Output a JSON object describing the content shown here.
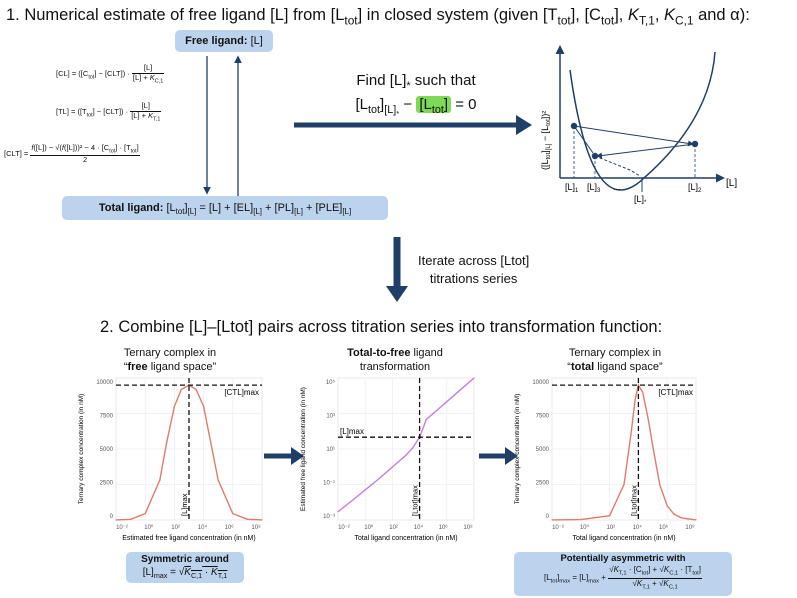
{
  "section1_title": "1. Numerical estimate of free ligand [L] from [Ltot] in closed system (given [Ttot], [Ctot], KT,1, KC,1 and α):",
  "free_ligand_label": "Free ligand:",
  "free_ligand_symbol": "[L]",
  "total_ligand_label": "Total ligand:",
  "find_text": "Find [L]* such that",
  "iterate_text": [
    "Iterate across [Ltot]",
    "titrations series"
  ],
  "section2_title": "2. Combine [L]–[Ltot] pairs across titration series into transformation function:",
  "schematic": {
    "y_axis": "([Ltot][L] − [Ltot])²",
    "x_axis": "[L]",
    "ticks": [
      "[L]1",
      "[L]3",
      "...",
      "[L]2",
      "[L]*"
    ]
  },
  "panels": [
    {
      "title_lines": [
        "Ternary complex in",
        "“free ligand space”"
      ],
      "ylabel": "Ternary complex concentration (in nM)",
      "xlabel": "Estimated free ligand concentration (in nM)",
      "yticks": [
        "10000",
        "7500",
        "5000",
        "2500",
        "0"
      ],
      "xticks": [
        "10⁻²",
        "10⁰",
        "10²",
        "10⁴",
        "10⁶",
        "10⁸"
      ],
      "annotations": [
        "[CTL]max",
        "[L]max"
      ],
      "caption_bold": "Symmetric around",
      "caption_eq": "[L]max = √(KC,1 · KT,1)"
    },
    {
      "title_lines": [
        "Total-to-free ligand",
        "transformation"
      ],
      "ylabel": "Estimated free ligand concentration (in nM)",
      "xlabel": "Total ligand concentration (in nM)",
      "yticks": [
        "10⁵",
        "10³",
        "10¹",
        "10⁻¹",
        "10⁻³"
      ],
      "xticks": [
        "10⁻²",
        "10⁰",
        "10²",
        "10⁴",
        "10⁶",
        "10⁸"
      ],
      "annotations": [
        "[L]max",
        "[Ltot]max"
      ]
    },
    {
      "title_lines": [
        "Ternary complex in",
        "“total ligand space”"
      ],
      "ylabel": "Ternary complex concentration (in nM)",
      "xlabel": "Total ligand concentration (in nM)",
      "yticks": [
        "10000",
        "7500",
        "5000",
        "2500",
        "0"
      ],
      "xticks": [
        "10⁻²",
        "10⁰",
        "10²",
        "10⁴",
        "10⁶",
        "10⁸"
      ],
      "annotations": [
        "[CTL]max",
        "[Ltot]max"
      ],
      "caption_bold": "Potentially asymmetric with"
    }
  ],
  "colors": {
    "pill": "#bcd3ee",
    "arrow": "#1f3f68",
    "highlight": "#7ed957",
    "red_curve": "#e07b6a",
    "purple_curve": "#c77ce0"
  },
  "chart_data": [
    {
      "type": "line",
      "title": "Ternary complex in “free ligand space”",
      "xlabel": "Estimated free ligand concentration (in nM)",
      "ylabel": "Ternary complex concentration (in nM)",
      "x_scale": "log",
      "xlim": [
        0.01,
        100000000
      ],
      "ylim": [
        0,
        10000
      ],
      "series": [
        {
          "x": [
            0.01,
            0.1,
            1,
            10,
            30,
            100,
            300,
            1000,
            3000,
            10000,
            100000,
            1000000,
            10000000,
            100000000
          ],
          "values": [
            5,
            50,
            450,
            2800,
            5500,
            8000,
            9200,
            9500,
            9200,
            8000,
            2800,
            450,
            50,
            5
          ]
        }
      ],
      "annotations": {
        "CTL_max": 9500,
        "L_max": 1000
      }
    },
    {
      "type": "line",
      "title": "Total-to-free ligand transformation",
      "xlabel": "Total ligand concentration (in nM)",
      "ylabel": "Estimated free ligand concentration (in nM)",
      "x_scale": "log",
      "y_scale": "log",
      "xlim": [
        0.01,
        100000000
      ],
      "ylim": [
        0.0001,
        100000000
      ],
      "series": [
        {
          "x": [
            0.01,
            0.1,
            1,
            10,
            100,
            1000,
            3000,
            10000,
            20000,
            30000,
            100000,
            1000000,
            10000000,
            100000000
          ],
          "values": [
            0.0005,
            0.004,
            0.035,
            0.3,
            3,
            30,
            120,
            1000,
            8000,
            30000,
            100000,
            1000000,
            10000000,
            100000000
          ]
        }
      ],
      "annotations": {
        "L_max": 1000,
        "Ltot_max": 10000
      }
    },
    {
      "type": "line",
      "title": "Ternary complex in “total ligand space”",
      "xlabel": "Total ligand concentration (in nM)",
      "ylabel": "Ternary complex concentration (in nM)",
      "x_scale": "log",
      "xlim": [
        0.01,
        100000000
      ],
      "ylim": [
        0,
        10000
      ],
      "series": [
        {
          "x": [
            0.01,
            1,
            100,
            1000,
            3000,
            6000,
            10000,
            20000,
            50000,
            100000,
            300000,
            1000000,
            3000000,
            10000000,
            100000000
          ],
          "values": [
            10,
            30,
            300,
            2500,
            6000,
            8500,
            9500,
            9000,
            7000,
            5200,
            2500,
            1000,
            400,
            150,
            10
          ]
        }
      ],
      "annotations": {
        "CTL_max": 9500,
        "Ltot_max": 10000
      }
    }
  ]
}
